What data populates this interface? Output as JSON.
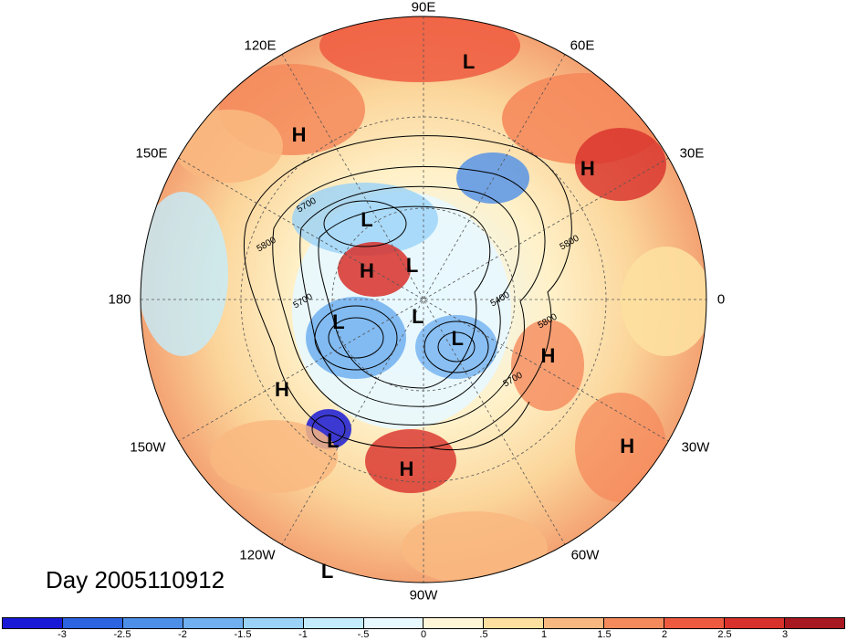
{
  "title": "Day 2005110912",
  "longitude_labels": [
    {
      "text": "90E",
      "angle": 90
    },
    {
      "text": "60E",
      "angle": 60
    },
    {
      "text": "30E",
      "angle": 30
    },
    {
      "text": "0",
      "angle": 0
    },
    {
      "text": "30W",
      "angle": -30
    },
    {
      "text": "60W",
      "angle": -60
    },
    {
      "text": "90W",
      "angle": -90
    },
    {
      "text": "120W",
      "angle": -120
    },
    {
      "text": "150W",
      "angle": -150
    },
    {
      "text": "180",
      "angle": 180
    },
    {
      "text": "150E",
      "angle": 150
    },
    {
      "text": "120E",
      "angle": 120
    }
  ],
  "contour_labels": [
    "5700",
    "5800",
    "5800",
    "5700",
    "5800",
    "5700",
    "5400"
  ],
  "pressure_systems": [
    {
      "type": "L",
      "nx": 0.58,
      "ny": 0.08
    },
    {
      "type": "H",
      "nx": 0.28,
      "ny": 0.21
    },
    {
      "type": "H",
      "nx": 0.79,
      "ny": 0.27
    },
    {
      "type": "L",
      "nx": 0.4,
      "ny": 0.36
    },
    {
      "type": "H",
      "nx": 0.4,
      "ny": 0.45
    },
    {
      "type": "L",
      "nx": 0.48,
      "ny": 0.44
    },
    {
      "type": "L",
      "nx": 0.35,
      "ny": 0.54
    },
    {
      "type": "L",
      "nx": 0.49,
      "ny": 0.53
    },
    {
      "type": "L",
      "nx": 0.56,
      "ny": 0.57
    },
    {
      "type": "H",
      "nx": 0.72,
      "ny": 0.6
    },
    {
      "type": "H",
      "nx": 0.25,
      "ny": 0.66
    },
    {
      "type": "L",
      "nx": 0.34,
      "ny": 0.75
    },
    {
      "type": "H",
      "nx": 0.47,
      "ny": 0.8
    },
    {
      "type": "H",
      "nx": 0.86,
      "ny": 0.76
    },
    {
      "type": "L",
      "nx": 0.33,
      "ny": 0.98
    }
  ],
  "colorbar": {
    "ticks": [
      "-3",
      "-2.5",
      "-2",
      "-1.5",
      "-1",
      "-.5",
      "0",
      ".5",
      "1",
      "1.5",
      "2",
      "2.5",
      "3"
    ],
    "colors": [
      "#1a1ad6",
      "#2b63e0",
      "#4d8fe8",
      "#70b0f0",
      "#9ad2f8",
      "#c4ecfc",
      "#e8f8ff",
      "#fff6d8",
      "#fde0a0",
      "#f9b880",
      "#f58a5c",
      "#ee5a40",
      "#d8302a",
      "#a81820"
    ]
  }
}
